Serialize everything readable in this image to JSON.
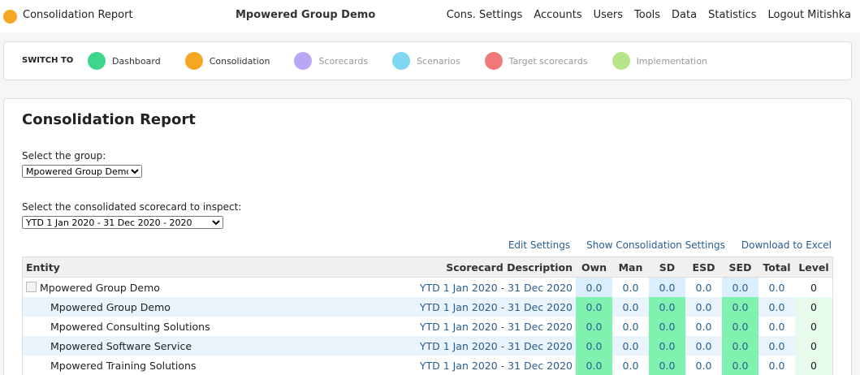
{
  "header": {
    "app": "Consolidation Report",
    "org": "Mpowered Group Demo",
    "nav": [
      "Cons. Settings",
      "Accounts",
      "Users",
      "Tools",
      "Data",
      "Statistics",
      "Logout Mitishka"
    ]
  },
  "switch": {
    "label": "SWITCH TO",
    "items": [
      "Dashboard",
      "Consolidation",
      "Scorecards",
      "Scenarios",
      "Target scorecards",
      "Implementation"
    ]
  },
  "report": {
    "title": "Consolidation Report",
    "group_label": "Select the group:",
    "group_value": "Mpowered Group Demo",
    "scorecard_label": "Select the consolidated scorecard to inspect:",
    "scorecard_value": "YTD 1 Jan 2020 - 31 Dec 2020 - 2020",
    "links": [
      "Edit Settings",
      "Show Consolidation Settings",
      "Download to Excel"
    ]
  },
  "table": {
    "columns": [
      "Entity",
      "Scorecard Description",
      "Own",
      "Man",
      "SD",
      "ESD",
      "SED",
      "Total",
      "Level"
    ],
    "rows": [
      [
        "Mpowered Group Demo",
        "YTD 1 Jan 2020 - 31 Dec 2020",
        "0.0",
        "0.0",
        "0.0",
        "0.0",
        "0.0",
        "0.0",
        "0"
      ],
      [
        "Mpowered Group Demo",
        "YTD 1 Jan 2020 - 31 Dec 2020",
        "0.0",
        "0.0",
        "0.0",
        "0.0",
        "0.0",
        "0.0",
        "0"
      ],
      [
        "Mpowered Consulting Solutions",
        "YTD 1 Jan 2020 - 31 Dec 2020",
        "0.0",
        "0.0",
        "0.0",
        "0.0",
        "0.0",
        "0.0",
        "0"
      ],
      [
        "Mpowered Software Service",
        "YTD 1 Jan 2020 - 31 Dec 2020",
        "0.0",
        "0.0",
        "0.0",
        "0.0",
        "0.0",
        "0.0",
        "0"
      ],
      [
        "Mpowered Training Solutions",
        "YTD 1 Jan 2020 - 31 Dec 2020",
        "0.0",
        "0.0",
        "0.0",
        "0.0",
        "0.0",
        "0.0",
        "0"
      ]
    ]
  }
}
